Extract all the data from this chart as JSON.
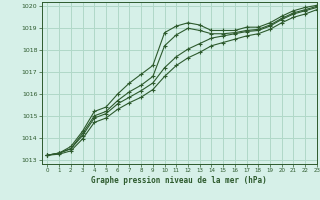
{
  "title": "Graphe pression niveau de la mer (hPa)",
  "bg_color": "#d6f0e8",
  "grid_color": "#b0d8c8",
  "line_color": "#2d5a2d",
  "xlim": [
    -0.5,
    23
  ],
  "ylim": [
    1012.8,
    1020.2
  ],
  "xticks": [
    0,
    1,
    2,
    3,
    4,
    5,
    6,
    7,
    8,
    9,
    10,
    11,
    12,
    13,
    14,
    15,
    16,
    17,
    18,
    19,
    20,
    21,
    22,
    23
  ],
  "yticks": [
    1013,
    1014,
    1015,
    1016,
    1017,
    1018,
    1019,
    1020
  ],
  "series_top": [
    1013.2,
    1013.3,
    1013.6,
    1014.3,
    1015.2,
    1015.4,
    1016.0,
    1016.5,
    1016.9,
    1017.3,
    1018.8,
    1019.1,
    1019.25,
    1019.15,
    1018.9,
    1018.9,
    1018.9,
    1019.05,
    1019.05,
    1019.25,
    1019.55,
    1019.8,
    1019.95,
    1020.05
  ],
  "series_mid": [
    1013.2,
    1013.3,
    1013.5,
    1014.2,
    1015.0,
    1015.2,
    1015.7,
    1016.1,
    1016.4,
    1016.8,
    1018.2,
    1018.7,
    1019.0,
    1018.9,
    1018.75,
    1018.75,
    1018.8,
    1018.9,
    1018.95,
    1019.15,
    1019.45,
    1019.7,
    1019.85,
    1020.0
  ],
  "series_low1": [
    1013.2,
    1013.3,
    1013.5,
    1014.1,
    1014.9,
    1015.1,
    1015.55,
    1015.85,
    1016.15,
    1016.5,
    1017.2,
    1017.7,
    1018.05,
    1018.3,
    1018.55,
    1018.65,
    1018.75,
    1018.85,
    1018.9,
    1019.1,
    1019.4,
    1019.65,
    1019.8,
    1019.95
  ],
  "series_low2": [
    1013.2,
    1013.25,
    1013.4,
    1013.95,
    1014.7,
    1014.9,
    1015.3,
    1015.6,
    1015.85,
    1016.2,
    1016.8,
    1017.3,
    1017.65,
    1017.9,
    1018.2,
    1018.35,
    1018.5,
    1018.65,
    1018.75,
    1018.95,
    1019.25,
    1019.5,
    1019.65,
    1019.85
  ]
}
